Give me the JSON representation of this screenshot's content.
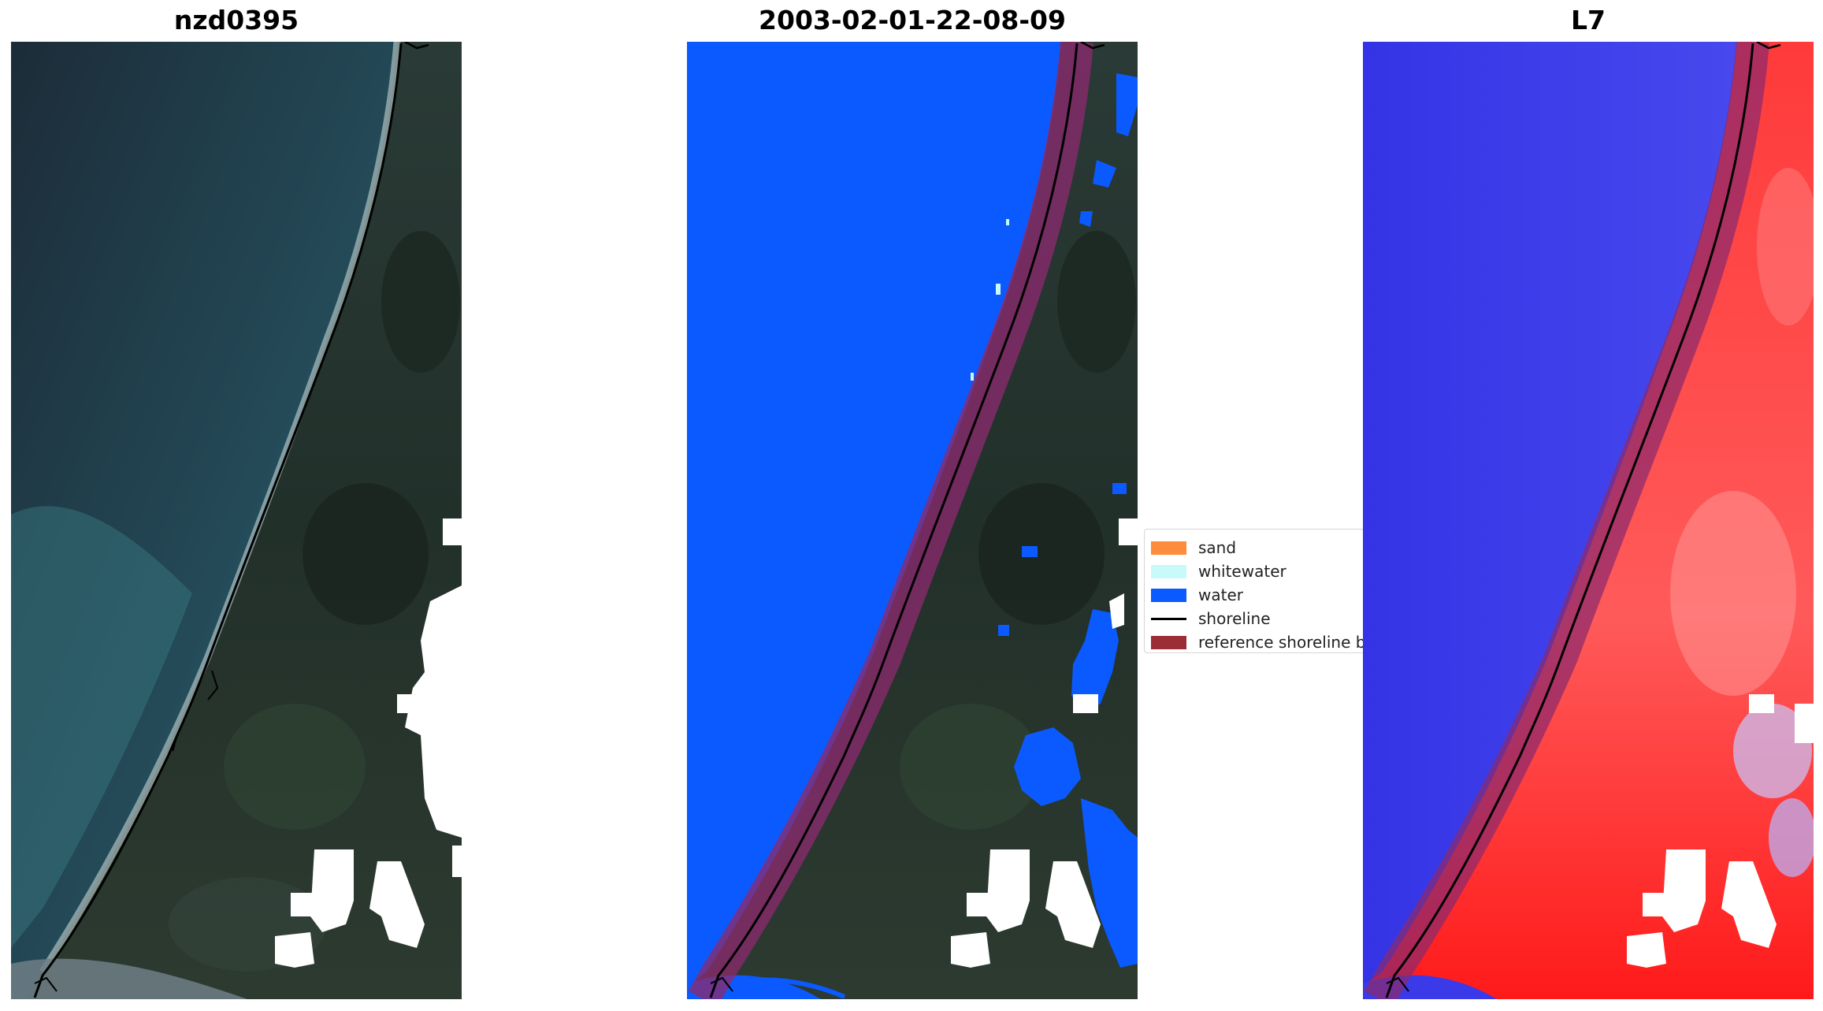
{
  "titles": {
    "left": "nzd0395",
    "middle": "2003-02-01-22-08-09",
    "right": "L7"
  },
  "legend": {
    "items": [
      {
        "label": "sand",
        "kind": "patch",
        "color": "#ff8c3c"
      },
      {
        "label": "whitewater",
        "kind": "patch",
        "color": "#c8fafa"
      },
      {
        "label": "water",
        "kind": "patch",
        "color": "#0a5aff"
      },
      {
        "label": "shoreline",
        "kind": "line",
        "color": "#000000"
      },
      {
        "label": "reference shoreline buffer",
        "kind": "patch",
        "color": "#9b2d37"
      }
    ]
  },
  "colors": {
    "ocean_rgb": "#1f3a47",
    "ocean_near_shore": "#2f6b78",
    "land_rgb": "#26302c",
    "classified_water": "#0a5aff",
    "buffer": "#8a2a6e",
    "index_water": "#2a2aee",
    "index_land": "#ff2020",
    "cloud_mask": "#ffffff"
  }
}
